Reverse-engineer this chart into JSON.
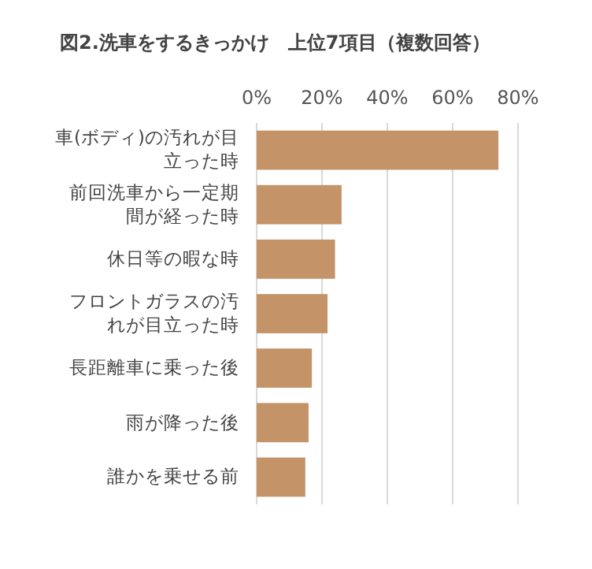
{
  "chart_data": {
    "type": "bar",
    "orientation": "horizontal",
    "title": "図2.洗車をするきっかけ　上位7項目（複数回答）",
    "categories": [
      "車(ボディ)の汚れが目立った時",
      "前回洗車から一定期間が経った時",
      "休日等の暇な時",
      "フロントガラスの汚れが目立った時",
      "長距離車に乗った後",
      "雨が降った後",
      "誰かを乗せる前"
    ],
    "values": [
      74,
      26,
      24,
      21.7,
      16.9,
      15.9,
      14.9
    ],
    "color": "#c49368",
    "xlim": [
      0,
      80
    ],
    "xticks": [
      {
        "value": 0,
        "label": "0%"
      },
      {
        "value": 20,
        "label": "20%"
      },
      {
        "value": 40,
        "label": "40%"
      },
      {
        "value": 60,
        "label": "60%"
      },
      {
        "value": 80,
        "label": "80%"
      }
    ],
    "grid": "x"
  }
}
